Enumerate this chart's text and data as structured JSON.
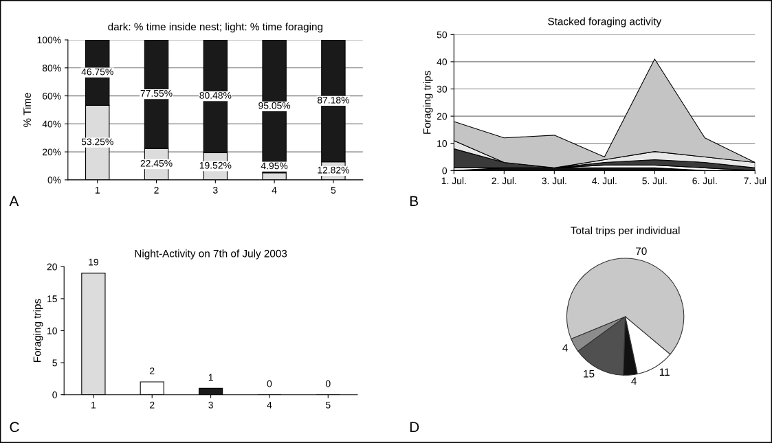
{
  "chart_data": [
    {
      "type": "bar",
      "title": "dark: % time inside nest; light: % time foraging",
      "ylabel": "% Time",
      "categories": [
        "1",
        "2",
        "3",
        "4",
        "5"
      ],
      "stacked": true,
      "series": [
        {
          "color": "#dcdcdc",
          "values": [
            53.25,
            22.45,
            19.52,
            4.95,
            12.82
          ],
          "value_labels": [
            "53.25%",
            "22.45%",
            "19.52%",
            "4.95%",
            "12.82%"
          ]
        },
        {
          "color": "#1a1a1a",
          "values": [
            46.75,
            77.55,
            80.48,
            95.05,
            87.18
          ],
          "value_labels": [
            "46.75%",
            "77.55%",
            "80.48%",
            "95.05%",
            "87.18%"
          ]
        }
      ],
      "ylim": [
        0,
        100
      ],
      "yticks": [
        {
          "value": 0,
          "label": "0%"
        },
        {
          "value": 20,
          "label": "20%"
        },
        {
          "value": 40,
          "label": "40%"
        },
        {
          "value": 60,
          "label": "60%"
        },
        {
          "value": 80,
          "label": "80%"
        },
        {
          "value": 100,
          "label": "100%"
        }
      ],
      "grid": "y",
      "annotations": [
        "A"
      ]
    },
    {
      "type": "area",
      "title": "Stacked foraging activity",
      "ylabel": "Foraging trips",
      "stacked": true,
      "categories": [
        "1. Jul.",
        "2. Jul.",
        "3. Jul.",
        "4. Jul.",
        "5. Jul.",
        "6. Jul.",
        "7. Jul"
      ],
      "series": [
        {
          "color": "#111111",
          "values": [
            0,
            1,
            1,
            1,
            1,
            0,
            0
          ]
        },
        {
          "color": "#ffffff",
          "values": [
            1,
            0,
            0,
            1,
            1,
            1,
            0
          ]
        },
        {
          "color": "#3a3a3a",
          "values": [
            7,
            2,
            0,
            1,
            2,
            2,
            1
          ]
        },
        {
          "color": "#e8e8e8",
          "values": [
            3,
            0,
            0,
            1,
            3,
            2,
            2
          ]
        },
        {
          "color": "#c4c4c4",
          "values": [
            7,
            9,
            12,
            1,
            34,
            7,
            0
          ]
        }
      ],
      "ylim": [
        0,
        50
      ],
      "yticks": [
        0,
        10,
        20,
        30,
        40,
        50
      ],
      "grid": "y",
      "annotations": [
        "B"
      ]
    },
    {
      "type": "bar",
      "title": "Night-Activity on 7th of July 2003",
      "ylabel": "Foraging trips",
      "categories": [
        "1",
        "2",
        "3",
        "4",
        "5"
      ],
      "values": [
        19,
        2,
        1,
        0,
        0
      ],
      "colors": [
        "#dcdcdc",
        "#ffffff",
        "#1a1a1a",
        "#ffffff",
        "#ffffff"
      ],
      "data_labels": true,
      "ylim": [
        0,
        20
      ],
      "yticks": [
        0,
        5,
        10,
        15,
        20
      ],
      "annotations": [
        "C"
      ]
    },
    {
      "type": "pie",
      "title": "Total trips per individual",
      "categories": [
        null,
        null,
        null,
        null,
        null
      ],
      "values": [
        70,
        4,
        15,
        4,
        11
      ],
      "colors": [
        "#c8c8c8",
        "#8c8c8c",
        "#505050",
        "#111111",
        "#ffffff"
      ],
      "data_labels": true,
      "annotations": [
        "D"
      ]
    }
  ]
}
